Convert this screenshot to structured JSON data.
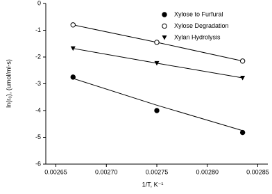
{
  "chart_data": {
    "type": "scatter",
    "x_label": "1/T, K⁻¹",
    "y_label": "ln(r₀), (umol/ml-s)",
    "x": [
      0.002667,
      0.00275,
      0.002835
    ],
    "series": [
      {
        "name": "Xylose to Furfural",
        "marker": "filled-circle",
        "color": "#000000",
        "values": [
          -2.75,
          -4.0,
          -4.82
        ],
        "trend_values": [
          -2.8,
          -3.8,
          -4.75
        ]
      },
      {
        "name": "Xylose Degradation",
        "marker": "open-circle",
        "color": "#000000",
        "values": [
          -0.8,
          -1.45,
          -2.15
        ],
        "trend_values": [
          -0.8,
          -1.45,
          -2.15
        ]
      },
      {
        "name": "Xylan Hydrolysis",
        "marker": "down-triangle",
        "color": "#000000",
        "values": [
          -1.68,
          -2.23,
          -2.78
        ],
        "trend_values": [
          -1.68,
          -2.23,
          -2.78
        ]
      }
    ],
    "xlim": [
      0.00264,
      0.00286
    ],
    "xticks": [
      0.00265,
      {
        "value": 0.0027,
        "label": "0.00270"
      },
      0.00275,
      {
        "value": 0.0028,
        "label": "0.00280"
      },
      0.00285
    ],
    "ylim": [
      -6,
      0
    ],
    "yticks": [
      0,
      -1,
      -2,
      -3,
      -4,
      -5,
      -6
    ],
    "legend": "top-right",
    "grid": false
  }
}
